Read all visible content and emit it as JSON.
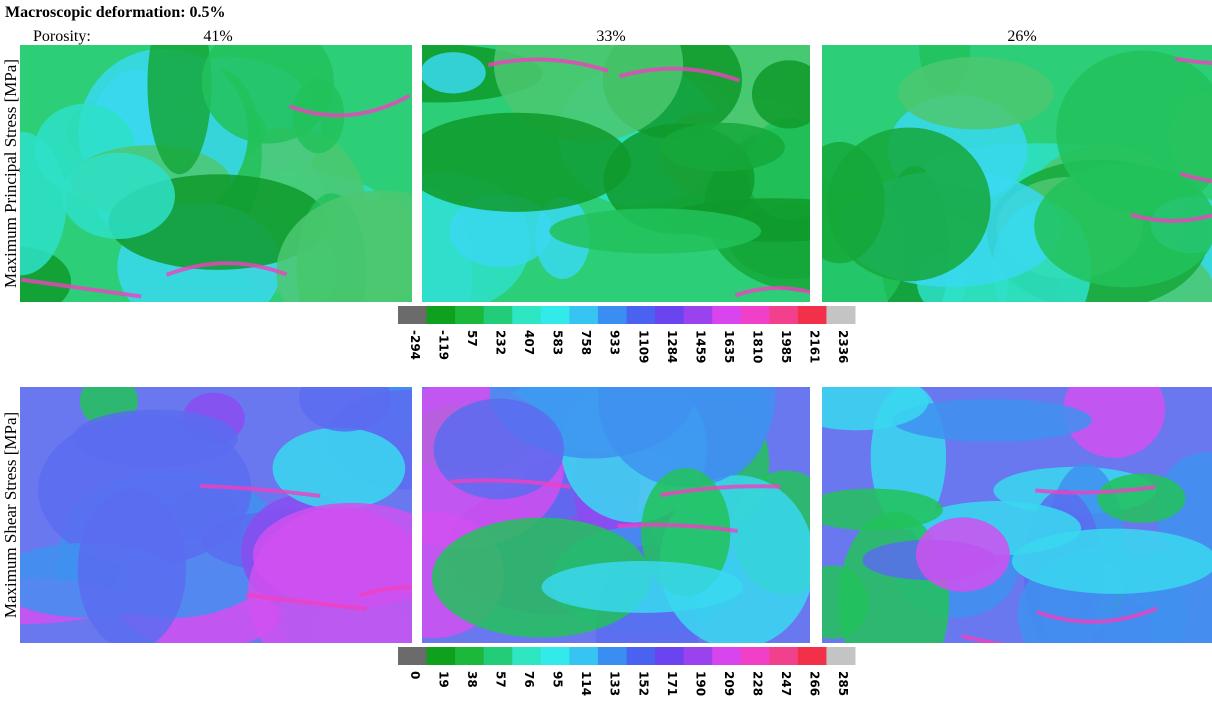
{
  "title": "Macroscopic deformation: 0.5%",
  "porosity_label": "Porosity:",
  "columns": [
    "41%",
    "33%",
    "26%"
  ],
  "rows": [
    {
      "label": "Maximum Principal Stress [MPa]",
      "colorbar": {
        "colors": [
          "#6b6b6b",
          "#0fa01e",
          "#1cb83c",
          "#22cc78",
          "#2ee6c2",
          "#33eaea",
          "#36c4f2",
          "#3a8ef2",
          "#4a62f0",
          "#6a44ee",
          "#9a42ee",
          "#d844ee",
          "#f040c8",
          "#f2408c",
          "#f2304a",
          "#c4c4c4"
        ],
        "ticks": [
          "-294",
          "-119",
          "57",
          "232",
          "407",
          "583",
          "758",
          "933",
          "1109",
          "1284",
          "1459",
          "1635",
          "1810",
          "1985",
          "2161",
          "2336"
        ]
      }
    },
    {
      "label": "Maximum Shear Stress [MPa]",
      "colorbar": {
        "colors": [
          "#6b6b6b",
          "#0fa01e",
          "#1cb83c",
          "#22cc78",
          "#2ee6c2",
          "#33eaea",
          "#36c4f2",
          "#3a8ef2",
          "#4a62f0",
          "#6a44ee",
          "#9a42ee",
          "#d844ee",
          "#f040c8",
          "#f2408c",
          "#f2304a",
          "#c4c4c4"
        ],
        "ticks": [
          "0",
          "19",
          "38",
          "57",
          "76",
          "95",
          "114",
          "133",
          "152",
          "171",
          "190",
          "209",
          "228",
          "247",
          "266",
          "285"
        ]
      }
    }
  ]
}
